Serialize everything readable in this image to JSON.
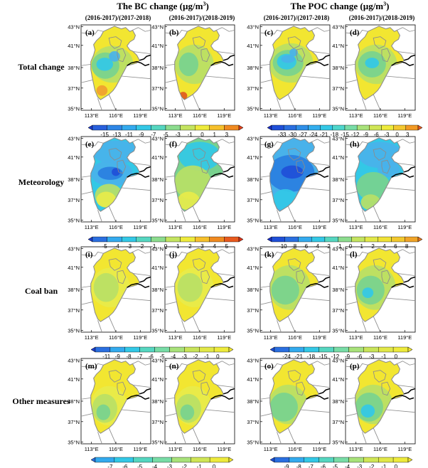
{
  "headers": {
    "bc_title": "The BC change (µg/m",
    "poc_title": "The POC change (µg/m",
    "unit_sup": "3",
    "unit_close": ")",
    "col_labels": [
      "(2016-2017)/(2017-2018)",
      "(2016-2017)/(2018-2019)",
      "(2016-2017)/(2017-2018)",
      "(2016-2017)/(2018-2019)"
    ]
  },
  "row_labels": [
    "Total change",
    "Meteorology",
    "Coal ban",
    "Other measures"
  ],
  "panel_letters": [
    [
      "(a)",
      "(b)",
      "(c)",
      "(d)"
    ],
    [
      "(e)",
      "(f)",
      "(g)",
      "(h)"
    ],
    [
      "(i)",
      "(j)",
      "(k)",
      "(l)"
    ],
    [
      "(m)",
      "(n)",
      "(o)",
      "(p)"
    ]
  ],
  "axes": {
    "lat_ticks": [
      "43°N",
      "41°N",
      "38°N",
      "37°N",
      "35°N"
    ],
    "lon_ticks": [
      "113°E",
      "116°E",
      "119°E"
    ]
  },
  "colors": {
    "yellow": "#f2e631",
    "lightyellow": "#e8ec4a",
    "lightgreen": "#b8e066",
    "green": "#78d28e",
    "cyan": "#33c8e6",
    "lightblue": "#49b2ea",
    "blue": "#2a7fe0",
    "darkblue": "#1f4fd8",
    "orange": "#f0a030",
    "red": "#e05a1e",
    "border": "#8c8c8c",
    "coast": "#000000"
  },
  "chart_data": {
    "type": "map-grid",
    "rows": 4,
    "cols": 4,
    "colorbars": [
      {
        "name": "bc_total",
        "labels": [
          "-15",
          "-13",
          "-11",
          "-9",
          "-7",
          "-5",
          "-3",
          "-1",
          "0",
          "1",
          "3"
        ],
        "colors": [
          "#1f3fd0",
          "#2860dc",
          "#2e86e6",
          "#33aaee",
          "#33c8e6",
          "#55d6c0",
          "#8cdc8e",
          "#c4e460",
          "#eeeb3c",
          "#f6c02c",
          "#f08a20",
          "#e0401a"
        ]
      },
      {
        "name": "poc_total",
        "labels": [
          "-33",
          "-30",
          "-27",
          "-24",
          "-21",
          "-18",
          "-15",
          "-12",
          "-9",
          "-6",
          "-3",
          "0",
          "3"
        ],
        "colors": [
          "#1a2fc8",
          "#1f4fd8",
          "#2a6fe0",
          "#2f8fe8",
          "#33aeee",
          "#33c8e6",
          "#4ed6cc",
          "#78dca6",
          "#a8e27a",
          "#d0e656",
          "#eeeb3c",
          "#f4c830",
          "#f29a24",
          "#e85a1e"
        ]
      },
      {
        "name": "bc_met",
        "labels": [
          "-5",
          "-4",
          "-3",
          "-2",
          "-1",
          "0",
          "1",
          "2",
          "3",
          "4",
          "5"
        ],
        "colors": [
          "#1f3fd0",
          "#2a6fe0",
          "#33aaee",
          "#33c8e6",
          "#55d6c0",
          "#8cdc8e",
          "#c4e460",
          "#eeeb3c",
          "#f6c02c",
          "#f08a20",
          "#e85a1e",
          "#d8341a"
        ]
      },
      {
        "name": "poc_met",
        "labels": [
          "-10",
          "-8",
          "-6",
          "-4",
          "-2",
          "-1",
          "0",
          "1",
          "2",
          "4",
          "6",
          "8"
        ],
        "colors": [
          "#1a2fc8",
          "#1f4fd8",
          "#2a6fe0",
          "#33aaee",
          "#33c8e6",
          "#55d6c0",
          "#8cdc8e",
          "#c4e460",
          "#e2e848",
          "#f0e236",
          "#f2c82e",
          "#f0a428",
          "#e8781e"
        ]
      },
      {
        "name": "bc_coal",
        "labels": [
          "-11",
          "-9",
          "-8",
          "-7",
          "-6",
          "-5",
          "-4",
          "-3",
          "-2",
          "-1",
          "0"
        ],
        "colors": [
          "#1f3fd0",
          "#2a6fe0",
          "#33aaee",
          "#33c8e6",
          "#55d6c0",
          "#78dca6",
          "#a8e27a",
          "#c8e45a",
          "#e2e848",
          "#eeeb3c",
          "#f2e631"
        ]
      },
      {
        "name": "poc_coal",
        "labels": [
          "-24",
          "-21",
          "-18",
          "-15",
          "-12",
          "-9",
          "-6",
          "-3",
          "-1",
          "0"
        ],
        "colors": [
          "#1f4fd8",
          "#2a6fe0",
          "#33aaee",
          "#33c8e6",
          "#55d6c0",
          "#78dca6",
          "#a8e27a",
          "#c8e45a",
          "#e2e848",
          "#eeeb3c",
          "#f2e631"
        ]
      },
      {
        "name": "bc_other",
        "labels": [
          "-7",
          "-6",
          "-5",
          "-4",
          "-3",
          "-2",
          "-1",
          "0"
        ],
        "colors": [
          "#2a6fe0",
          "#33aaee",
          "#33c8e6",
          "#55d6c0",
          "#78dca6",
          "#a8e27a",
          "#d0e656",
          "#eeeb3c",
          "#f2e631"
        ]
      },
      {
        "name": "poc_other",
        "labels": [
          "-9",
          "-8",
          "-7",
          "-6",
          "-5",
          "-4",
          "-3",
          "-2",
          "-1",
          "0"
        ],
        "colors": [
          "#1f4fd8",
          "#2a6fe0",
          "#33aaee",
          "#33c8e6",
          "#55d6c0",
          "#78dca6",
          "#a8e27a",
          "#d0e656",
          "#e2e848",
          "#eeeb3c",
          "#f2e631"
        ]
      }
    ],
    "panel_patterns": [
      [
        "total_bc_a",
        "total_bc_b",
        "total_poc_c",
        "total_poc_d"
      ],
      [
        "met_bc_e",
        "met_bc_f",
        "met_poc_g",
        "met_poc_h"
      ],
      [
        "coal_bc",
        "coal_bc",
        "coal_poc_k",
        "coal_poc_l"
      ],
      [
        "other_bc",
        "other_bc",
        "other_poc_o",
        "other_poc_p"
      ]
    ]
  }
}
